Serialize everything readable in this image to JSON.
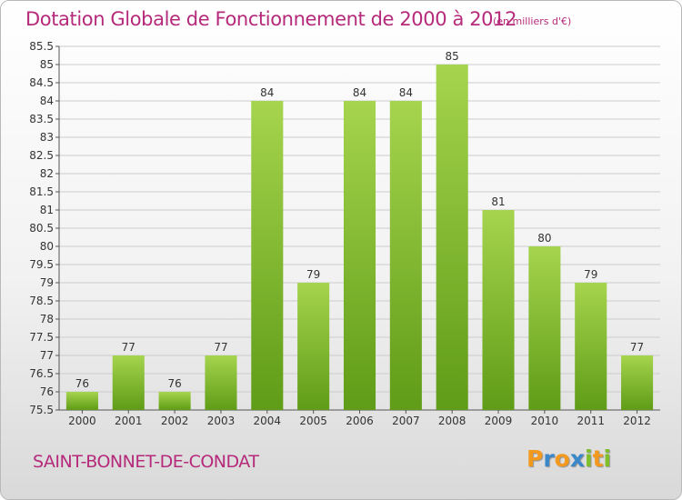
{
  "header": {
    "title": "Dotation Globale de Fonctionnement de 2000 à 2012",
    "subtitle": "(en milliers d'€)"
  },
  "footer": {
    "commune": "SAINT-BONNET-DE-CONDAT",
    "brand": "Proxiti",
    "brand_letters": [
      "P",
      "r",
      "o",
      "x",
      "i",
      "t",
      "i"
    ],
    "brand_colors": [
      "#f39a1e",
      "#3a87c9",
      "#f39a1e",
      "#3a87c9",
      "#7fbf2a",
      "#f39a1e",
      "#7fbf2a"
    ]
  },
  "colors": {
    "bar_light": "#a6d44e",
    "bar_dark": "#5f9c17",
    "text": "#333333",
    "axis": "#555555",
    "grid": "#cccccc",
    "accent": "#b52a7a"
  },
  "chart_data": {
    "type": "bar",
    "title": "Dotation Globale de Fonctionnement de 2000 à 2012",
    "subtitle": "(en milliers d'€)",
    "categories": [
      "2000",
      "2001",
      "2002",
      "2003",
      "2004",
      "2005",
      "2006",
      "2007",
      "2008",
      "2009",
      "2010",
      "2011",
      "2012"
    ],
    "values": [
      76,
      77,
      76,
      77,
      84,
      79,
      84,
      84,
      85,
      81,
      80,
      79,
      77
    ],
    "value_labels": [
      "76",
      "77",
      "76",
      "77",
      "84",
      "79",
      "84",
      "84",
      "85",
      "81",
      "80",
      "79",
      "77"
    ],
    "ylim": [
      75.5,
      85.5
    ],
    "yticks": [
      75.5,
      76,
      76.5,
      77,
      77.5,
      78,
      78.5,
      79,
      79.5,
      80,
      80.5,
      81,
      81.5,
      82,
      82.5,
      83,
      83.5,
      84,
      84.5,
      85,
      85.5
    ],
    "ytick_labels": [
      "75.5",
      "76",
      "76.5",
      "77",
      "77.5",
      "78",
      "78.5",
      "79",
      "79.5",
      "80",
      "80.5",
      "81",
      "81.5",
      "82",
      "82.5",
      "83",
      "83.5",
      "84",
      "84.5",
      "85",
      "85.5"
    ],
    "grid": true,
    "legend": "none"
  }
}
